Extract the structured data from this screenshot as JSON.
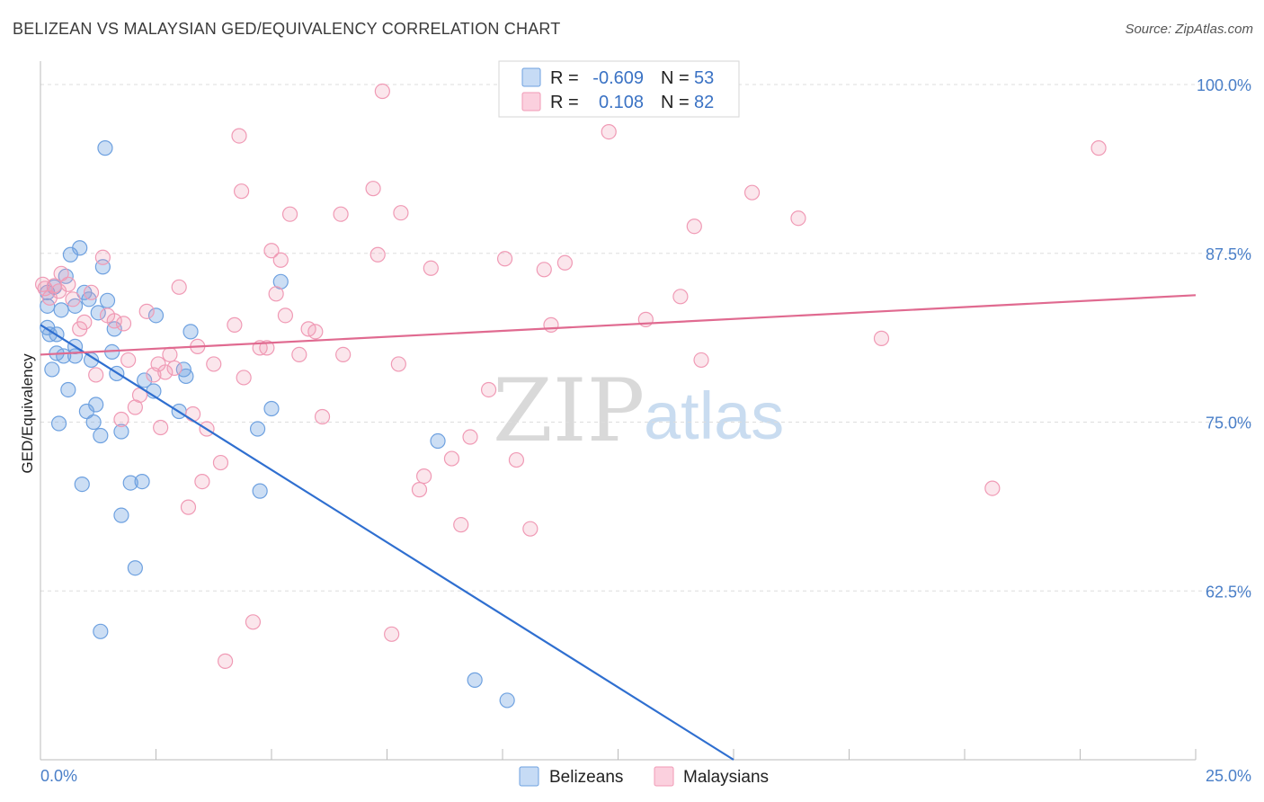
{
  "header": {
    "title": "BELIZEAN VS MALAYSIAN GED/EQUIVALENCY CORRELATION CHART",
    "source": "Source: ZipAtlas.com"
  },
  "watermark": {
    "zip": "ZIP",
    "atlas": "atlas"
  },
  "legend": {
    "r_label": "R =",
    "n_label": "N =",
    "rows": [
      {
        "series": "Belizeans",
        "r": "-0.609",
        "n": "53",
        "color": "#6ea1e0"
      },
      {
        "series": "Malaysians",
        "r": "0.108",
        "n": "82",
        "color": "#f09ab5"
      }
    ]
  },
  "bottom_legend": [
    "Belizeans",
    "Malaysians"
  ],
  "chart_data": {
    "type": "scatter",
    "title": "BELIZEAN VS MALAYSIAN GED/EQUIVALENCY CORRELATION CHART",
    "xlabel": "",
    "ylabel": "GED/Equivalency",
    "xlim": [
      0,
      25
    ],
    "ylim": [
      50,
      101
    ],
    "x_tick_labels": [
      "0.0%",
      "25.0%"
    ],
    "y_ticks": [
      62.5,
      75.0,
      87.5,
      100.0
    ],
    "y_tick_labels": [
      "62.5%",
      "75.0%",
      "87.5%",
      "100.0%"
    ],
    "grid": true,
    "series": [
      {
        "name": "Belizeans",
        "color": "#6ea1e0",
        "trend": {
          "x": [
            0,
            15
          ],
          "y": [
            82.2,
            50
          ]
        },
        "points": [
          [
            0.15,
            84.6
          ],
          [
            0.15,
            83.6
          ],
          [
            0.15,
            82.0
          ],
          [
            0.2,
            81.5
          ],
          [
            0.25,
            78.9
          ],
          [
            0.3,
            85.0
          ],
          [
            0.35,
            81.5
          ],
          [
            0.35,
            80.1
          ],
          [
            0.4,
            74.9
          ],
          [
            0.45,
            83.3
          ],
          [
            0.5,
            79.9
          ],
          [
            0.55,
            85.8
          ],
          [
            0.6,
            77.4
          ],
          [
            0.65,
            87.4
          ],
          [
            0.75,
            83.6
          ],
          [
            0.75,
            80.6
          ],
          [
            0.75,
            79.9
          ],
          [
            0.85,
            87.9
          ],
          [
            0.9,
            70.4
          ],
          [
            0.95,
            84.6
          ],
          [
            1.0,
            75.8
          ],
          [
            1.05,
            84.1
          ],
          [
            1.1,
            79.6
          ],
          [
            1.15,
            75.0
          ],
          [
            1.2,
            76.3
          ],
          [
            1.25,
            83.1
          ],
          [
            1.3,
            74.0
          ],
          [
            1.35,
            86.5
          ],
          [
            1.4,
            95.3
          ],
          [
            1.45,
            84.0
          ],
          [
            1.55,
            80.2
          ],
          [
            1.6,
            81.9
          ],
          [
            1.65,
            78.6
          ],
          [
            1.75,
            74.3
          ],
          [
            1.75,
            68.1
          ],
          [
            1.95,
            70.5
          ],
          [
            2.05,
            64.2
          ],
          [
            2.2,
            70.6
          ],
          [
            2.25,
            78.1
          ],
          [
            2.45,
            77.3
          ],
          [
            2.5,
            82.9
          ],
          [
            3.0,
            75.8
          ],
          [
            3.1,
            78.9
          ],
          [
            3.15,
            78.4
          ],
          [
            3.25,
            81.7
          ],
          [
            4.7,
            74.5
          ],
          [
            4.75,
            69.9
          ],
          [
            5.0,
            76.0
          ],
          [
            5.2,
            85.4
          ],
          [
            8.6,
            73.6
          ],
          [
            9.4,
            55.9
          ],
          [
            10.1,
            54.4
          ],
          [
            1.3,
            59.5
          ]
        ]
      },
      {
        "name": "Malaysians",
        "color": "#f09ab5",
        "trend": {
          "x": [
            0,
            25
          ],
          "y": [
            80.0,
            84.4
          ]
        },
        "points": [
          [
            0.05,
            85.2
          ],
          [
            0.1,
            84.9
          ],
          [
            0.2,
            84.2
          ],
          [
            0.3,
            85.1
          ],
          [
            0.4,
            84.7
          ],
          [
            0.45,
            86.0
          ],
          [
            0.6,
            85.2
          ],
          [
            0.7,
            84.1
          ],
          [
            0.85,
            81.9
          ],
          [
            0.95,
            82.4
          ],
          [
            1.1,
            84.6
          ],
          [
            1.2,
            78.5
          ],
          [
            1.35,
            87.2
          ],
          [
            1.45,
            82.9
          ],
          [
            1.6,
            82.5
          ],
          [
            1.75,
            75.2
          ],
          [
            1.8,
            82.3
          ],
          [
            1.9,
            79.6
          ],
          [
            2.05,
            76.1
          ],
          [
            2.15,
            77.0
          ],
          [
            2.3,
            83.2
          ],
          [
            2.45,
            78.5
          ],
          [
            2.55,
            79.3
          ],
          [
            2.6,
            74.6
          ],
          [
            2.7,
            78.7
          ],
          [
            2.8,
            80.0
          ],
          [
            2.9,
            79.0
          ],
          [
            3.0,
            85.0
          ],
          [
            3.2,
            68.7
          ],
          [
            3.3,
            75.6
          ],
          [
            3.4,
            80.6
          ],
          [
            3.5,
            70.6
          ],
          [
            3.6,
            74.5
          ],
          [
            3.75,
            79.3
          ],
          [
            3.9,
            72.0
          ],
          [
            4.0,
            57.3
          ],
          [
            4.2,
            82.2
          ],
          [
            4.3,
            96.2
          ],
          [
            4.35,
            92.1
          ],
          [
            4.4,
            78.3
          ],
          [
            4.6,
            60.2
          ],
          [
            4.75,
            80.5
          ],
          [
            4.9,
            80.5
          ],
          [
            5.0,
            87.7
          ],
          [
            5.1,
            84.5
          ],
          [
            5.2,
            87.0
          ],
          [
            5.3,
            82.9
          ],
          [
            5.4,
            90.4
          ],
          [
            5.6,
            80.0
          ],
          [
            5.8,
            81.9
          ],
          [
            5.95,
            81.7
          ],
          [
            6.1,
            75.4
          ],
          [
            6.5,
            90.4
          ],
          [
            6.55,
            80.0
          ],
          [
            7.2,
            92.3
          ],
          [
            7.3,
            87.4
          ],
          [
            7.6,
            59.3
          ],
          [
            7.8,
            90.5
          ],
          [
            7.75,
            79.3
          ],
          [
            8.2,
            70.0
          ],
          [
            8.3,
            71.0
          ],
          [
            8.45,
            86.4
          ],
          [
            8.9,
            72.3
          ],
          [
            9.1,
            67.4
          ],
          [
            9.3,
            73.9
          ],
          [
            9.7,
            77.4
          ],
          [
            10.05,
            87.1
          ],
          [
            10.3,
            72.2
          ],
          [
            10.6,
            67.1
          ],
          [
            10.9,
            86.3
          ],
          [
            11.05,
            82.2
          ],
          [
            11.35,
            86.8
          ],
          [
            12.3,
            96.5
          ],
          [
            13.1,
            82.6
          ],
          [
            13.85,
            84.3
          ],
          [
            14.15,
            89.5
          ],
          [
            14.3,
            79.6
          ],
          [
            15.4,
            92.0
          ],
          [
            16.4,
            90.1
          ],
          [
            18.2,
            81.2
          ],
          [
            20.6,
            70.1
          ],
          [
            22.9,
            95.3
          ],
          [
            7.4,
            99.5
          ]
        ]
      }
    ]
  }
}
